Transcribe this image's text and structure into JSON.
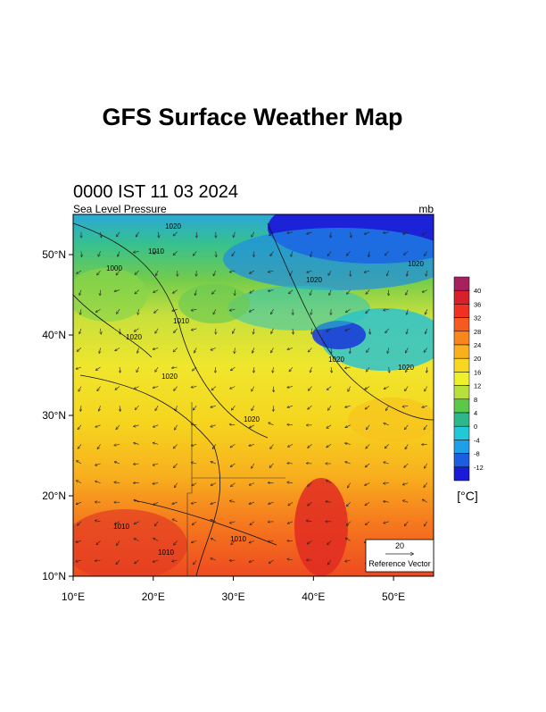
{
  "title": "GFS Surface Weather Map",
  "subtitle": "0000 IST 11 03 2024",
  "field_label": "Sea Level Pressure",
  "field_unit": "mb",
  "map": {
    "lon_range": [
      10,
      55
    ],
    "lat_range": [
      10,
      55
    ],
    "lon_ticks": [
      {
        "value": 10,
        "label": "10°E"
      },
      {
        "value": 20,
        "label": "20°E"
      },
      {
        "value": 30,
        "label": "30°E"
      },
      {
        "value": 40,
        "label": "40°E"
      },
      {
        "value": 50,
        "label": "50°E"
      }
    ],
    "lat_ticks": [
      {
        "value": 10,
        "label": "10°N"
      },
      {
        "value": 20,
        "label": "20°N"
      },
      {
        "value": 30,
        "label": "30°N"
      },
      {
        "value": 40,
        "label": "40°N"
      },
      {
        "value": 50,
        "label": "50°N"
      }
    ],
    "contour_labels": [
      "1020",
      "1010",
      "1000",
      "1020",
      "1020",
      "1010",
      "1020",
      "1020",
      "1020",
      "1020",
      "1020",
      "1010",
      "1010",
      "1010"
    ]
  },
  "colorbar": {
    "ticks": [
      40,
      36,
      32,
      28,
      24,
      20,
      16,
      12,
      8,
      4,
      0,
      -4,
      -8,
      -12
    ],
    "colors": [
      "#a8205e",
      "#d8202a",
      "#f03020",
      "#f55a1e",
      "#f8861c",
      "#f9b01e",
      "#f6d81e",
      "#eef02a",
      "#b8e03a",
      "#5cc84a",
      "#2eb88a",
      "#20c8d8",
      "#1ea0e8",
      "#1c5ee0",
      "#1a1ad8"
    ],
    "unit": "[°C]"
  },
  "reference_vector": {
    "magnitude": "20",
    "label": "Reference Vector"
  }
}
